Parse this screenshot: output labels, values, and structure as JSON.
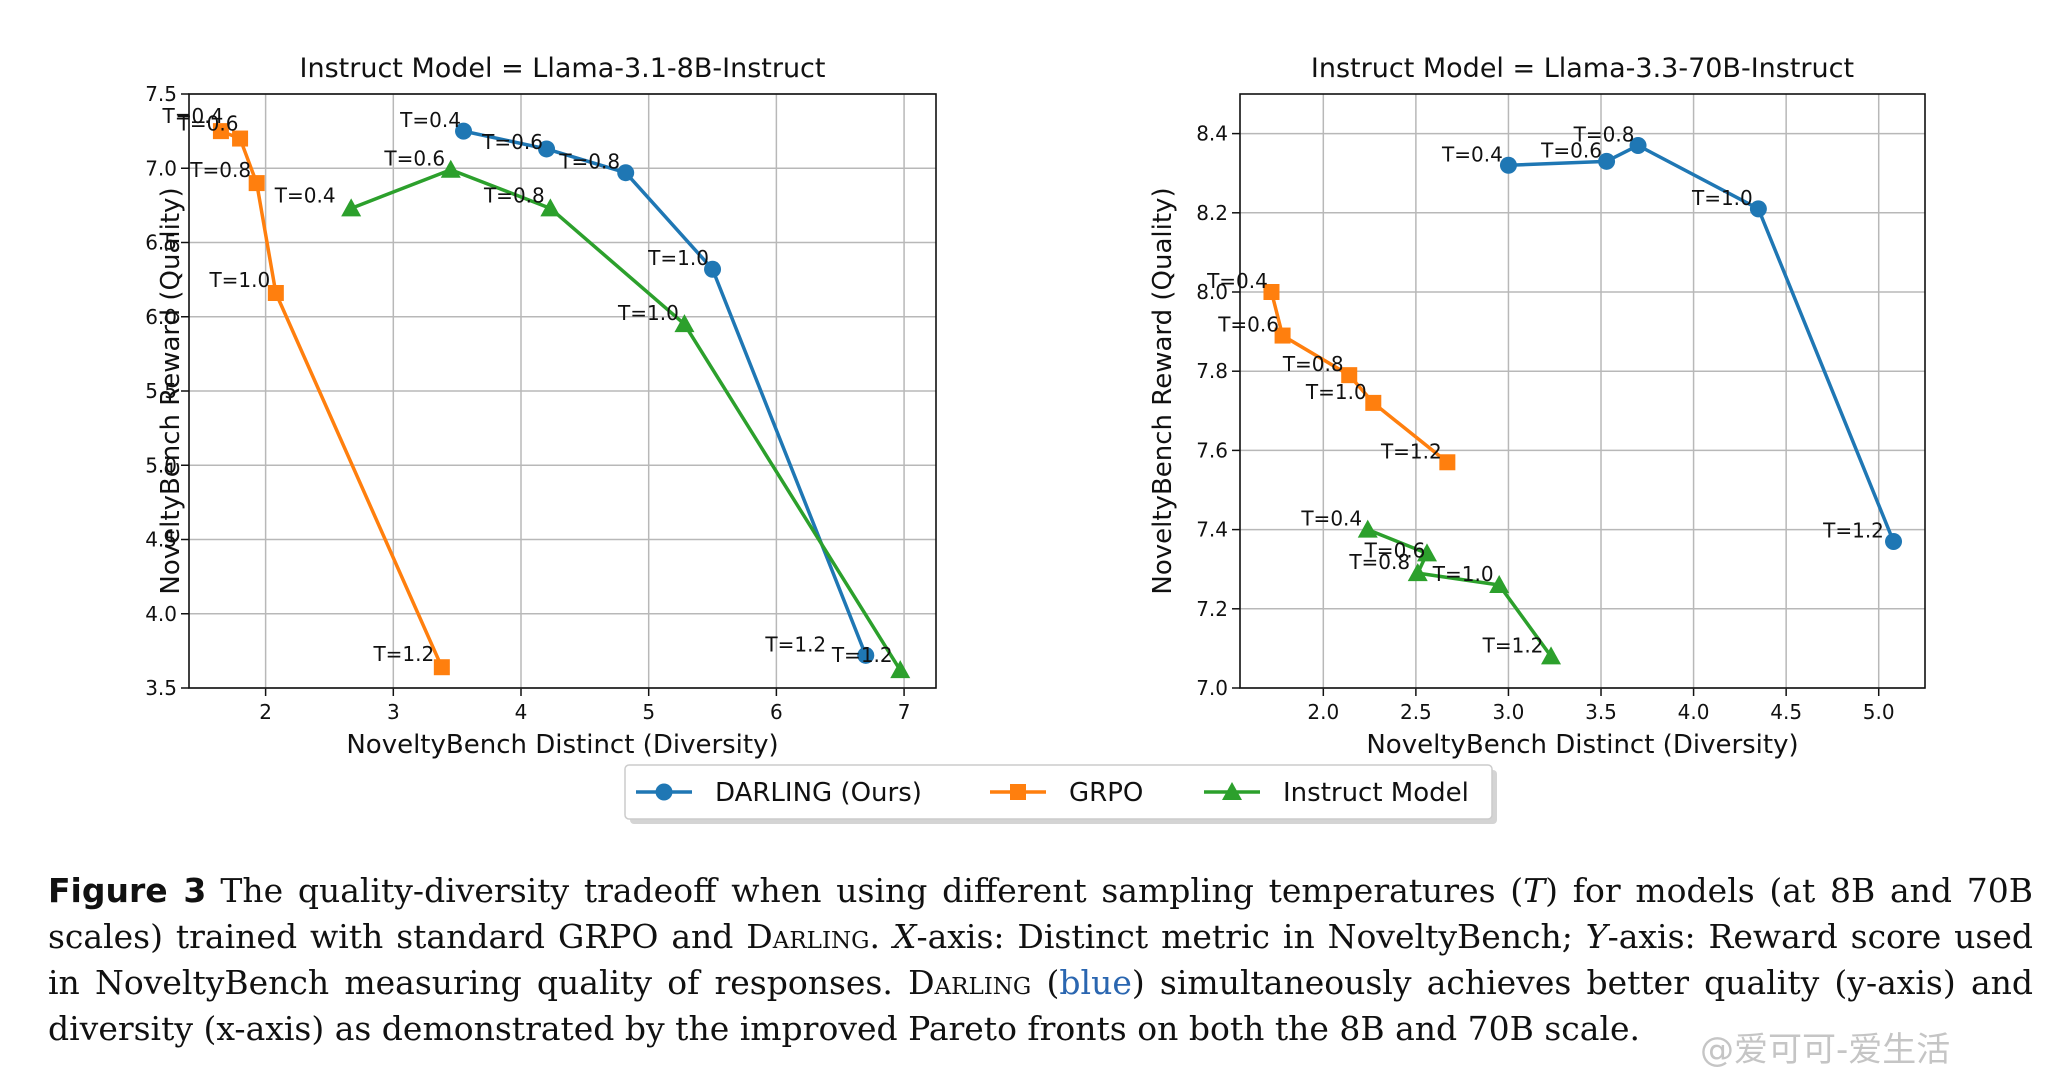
{
  "chart_data": [
    {
      "type": "line",
      "title": "Instruct Model = Llama-3.1-8B-Instruct",
      "xlabel": "NoveltyBench Distinct (Diversity)",
      "ylabel": "NoveltyBench Reward (Quality)",
      "xlim": [
        1.4,
        7.25
      ],
      "ylim": [
        3.5,
        7.5
      ],
      "xticks": [
        "2",
        "3",
        "4",
        "5",
        "6",
        "7"
      ],
      "yticks": [
        "3.5",
        "4.0",
        "4.5",
        "5.0",
        "5.5",
        "6.0",
        "6.5",
        "7.0",
        "7.5"
      ],
      "grid": true,
      "series": [
        {
          "name": "DARLING (Ours)",
          "color": "#1f77b4",
          "marker": "circle",
          "points": [
            {
              "x": 3.55,
              "y": 7.25,
              "label": "T=0.4"
            },
            {
              "x": 4.2,
              "y": 7.13,
              "label": "T=0.6"
            },
            {
              "x": 4.82,
              "y": 6.97,
              "label": "T=0.8"
            },
            {
              "x": 5.5,
              "y": 6.32,
              "label": "T=1.0"
            },
            {
              "x": 6.7,
              "y": 3.72,
              "label": "T=1.2"
            }
          ]
        },
        {
          "name": "GRPO",
          "color": "#ff7f0e",
          "marker": "square",
          "points": [
            {
              "x": 1.65,
              "y": 7.25,
              "label": "T=0.4"
            },
            {
              "x": 1.8,
              "y": 7.2,
              "label": "T=0.6"
            },
            {
              "x": 1.93,
              "y": 6.9,
              "label": "T=0.8"
            },
            {
              "x": 2.08,
              "y": 6.16,
              "label": "T=1.0"
            },
            {
              "x": 3.38,
              "y": 3.64,
              "label": "T=1.2"
            }
          ]
        },
        {
          "name": "Instruct Model",
          "color": "#2ca02c",
          "marker": "triangle",
          "points": [
            {
              "x": 2.67,
              "y": 6.73,
              "label": "T=0.4"
            },
            {
              "x": 3.45,
              "y": 6.99,
              "label": "T=0.6"
            },
            {
              "x": 4.23,
              "y": 6.73,
              "label": "T=0.8"
            },
            {
              "x": 5.28,
              "y": 5.95,
              "label": "T=1.0"
            },
            {
              "x": 6.97,
              "y": 3.62,
              "label": "T=1.2"
            }
          ]
        }
      ]
    },
    {
      "type": "line",
      "title": "Instruct Model = Llama-3.3-70B-Instruct",
      "xlabel": "NoveltyBench Distinct (Diversity)",
      "ylabel": "NoveltyBench Reward (Quality)",
      "xlim": [
        1.55,
        5.25
      ],
      "ylim": [
        7.0,
        8.5
      ],
      "xticks": [
        "2.0",
        "2.5",
        "3.0",
        "3.5",
        "4.0",
        "4.5",
        "5.0"
      ],
      "yticks": [
        "7.0",
        "7.2",
        "7.4",
        "7.6",
        "7.8",
        "8.0",
        "8.2",
        "8.4"
      ],
      "grid": true,
      "series": [
        {
          "name": "DARLING (Ours)",
          "color": "#1f77b4",
          "marker": "circle",
          "points": [
            {
              "x": 3.0,
              "y": 8.32,
              "label": "T=0.4"
            },
            {
              "x": 3.53,
              "y": 8.33,
              "label": "T=0.6"
            },
            {
              "x": 3.7,
              "y": 8.37,
              "label": "T=0.8"
            },
            {
              "x": 4.35,
              "y": 8.21,
              "label": "T=1.0"
            },
            {
              "x": 5.08,
              "y": 7.37,
              "label": "T=1.2"
            }
          ]
        },
        {
          "name": "GRPO",
          "color": "#ff7f0e",
          "marker": "square",
          "points": [
            {
              "x": 1.72,
              "y": 8.0,
              "label": "T=0.4"
            },
            {
              "x": 1.78,
              "y": 7.89,
              "label": "T=0.6"
            },
            {
              "x": 2.14,
              "y": 7.79,
              "label": "T=0.8"
            },
            {
              "x": 2.27,
              "y": 7.72,
              "label": "T=1.0"
            },
            {
              "x": 2.67,
              "y": 7.57,
              "label": "T=1.2"
            }
          ]
        },
        {
          "name": "Instruct Model",
          "color": "#2ca02c",
          "marker": "triangle",
          "points": [
            {
              "x": 2.24,
              "y": 7.4,
              "label": "T=0.4"
            },
            {
              "x": 2.56,
              "y": 7.34,
              "label": "T=0.6"
            },
            {
              "x": 2.51,
              "y": 7.29,
              "label": "T=0.8"
            },
            {
              "x": 2.95,
              "y": 7.26,
              "label": "T=1.0"
            },
            {
              "x": 3.23,
              "y": 7.08,
              "label": "T=1.2"
            }
          ]
        }
      ]
    }
  ],
  "legend": {
    "placement": "bottom-center",
    "items": [
      {
        "label": "DARLING (Ours)",
        "color": "#1f77b4",
        "marker": "circle"
      },
      {
        "label": "GRPO",
        "color": "#ff7f0e",
        "marker": "square"
      },
      {
        "label": "Instruct Model",
        "color": "#2ca02c",
        "marker": "triangle"
      }
    ]
  },
  "caption": {
    "label": "Figure 3",
    "p1": "The quality-diversity tradeoff when using different sampling temperatures (",
    "var_t": "T",
    "p2": ") for models (at 8B and 70B scales) trained with standard GRPO and ",
    "darling1": "Darling",
    "p3": ". ",
    "var_x": "X",
    "p4": "-axis: Distinct metric in NoveltyBench; ",
    "var_y": "Y",
    "p5": "-axis: Reward score used in NoveltyBench measuring quality of responses. ",
    "darling2": "Darling",
    "p6": " (",
    "blue": "blue",
    "p7": ") simultaneously achieves better quality (y-axis) and diversity (x-axis) as demonstrated by the improved Pareto fronts on both the 8B and 70B scale."
  },
  "watermark": "@爱可可-爱生活"
}
